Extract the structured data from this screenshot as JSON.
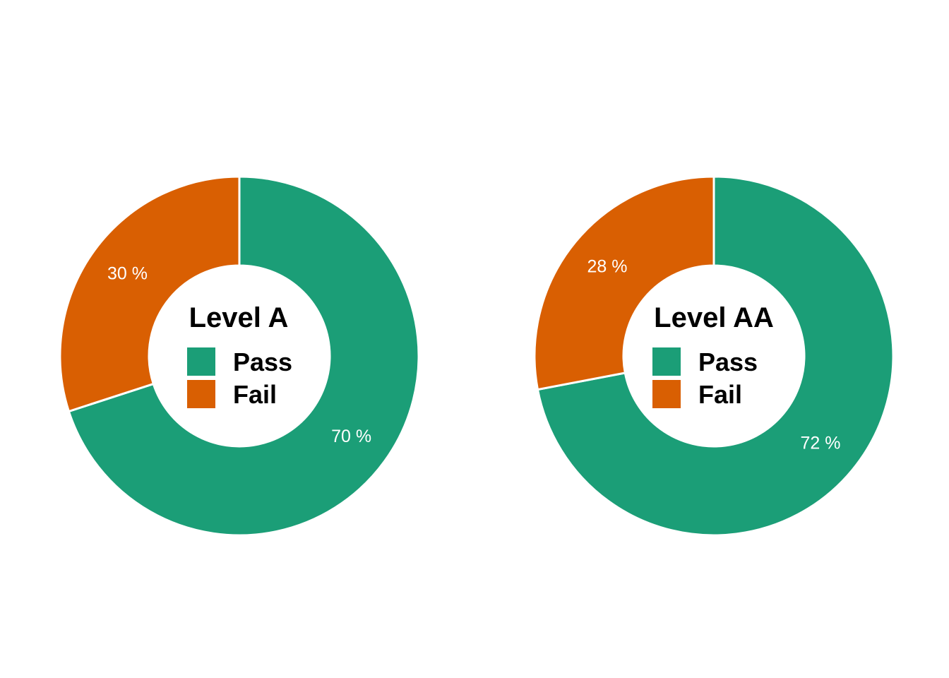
{
  "chart_data": [
    {
      "type": "pie",
      "title": "Level A",
      "categories": [
        "Pass",
        "Fail"
      ],
      "values": [
        70,
        30
      ],
      "labels": [
        "70 %",
        "30 %"
      ],
      "colors": [
        "#1b9e77",
        "#d95f02"
      ],
      "legend": [
        {
          "label": "Pass",
          "color": "#1b9e77"
        },
        {
          "label": "Fail",
          "color": "#d95f02"
        }
      ],
      "legend_placement": "center"
    },
    {
      "type": "pie",
      "title": "Level AA",
      "categories": [
        "Pass",
        "Fail"
      ],
      "values": [
        72,
        28
      ],
      "labels": [
        "72 %",
        "28 %"
      ],
      "colors": [
        "#1b9e77",
        "#d95f02"
      ],
      "legend": [
        {
          "label": "Pass",
          "color": "#1b9e77"
        },
        {
          "label": "Fail",
          "color": "#d95f02"
        }
      ],
      "legend_placement": "center"
    }
  ]
}
